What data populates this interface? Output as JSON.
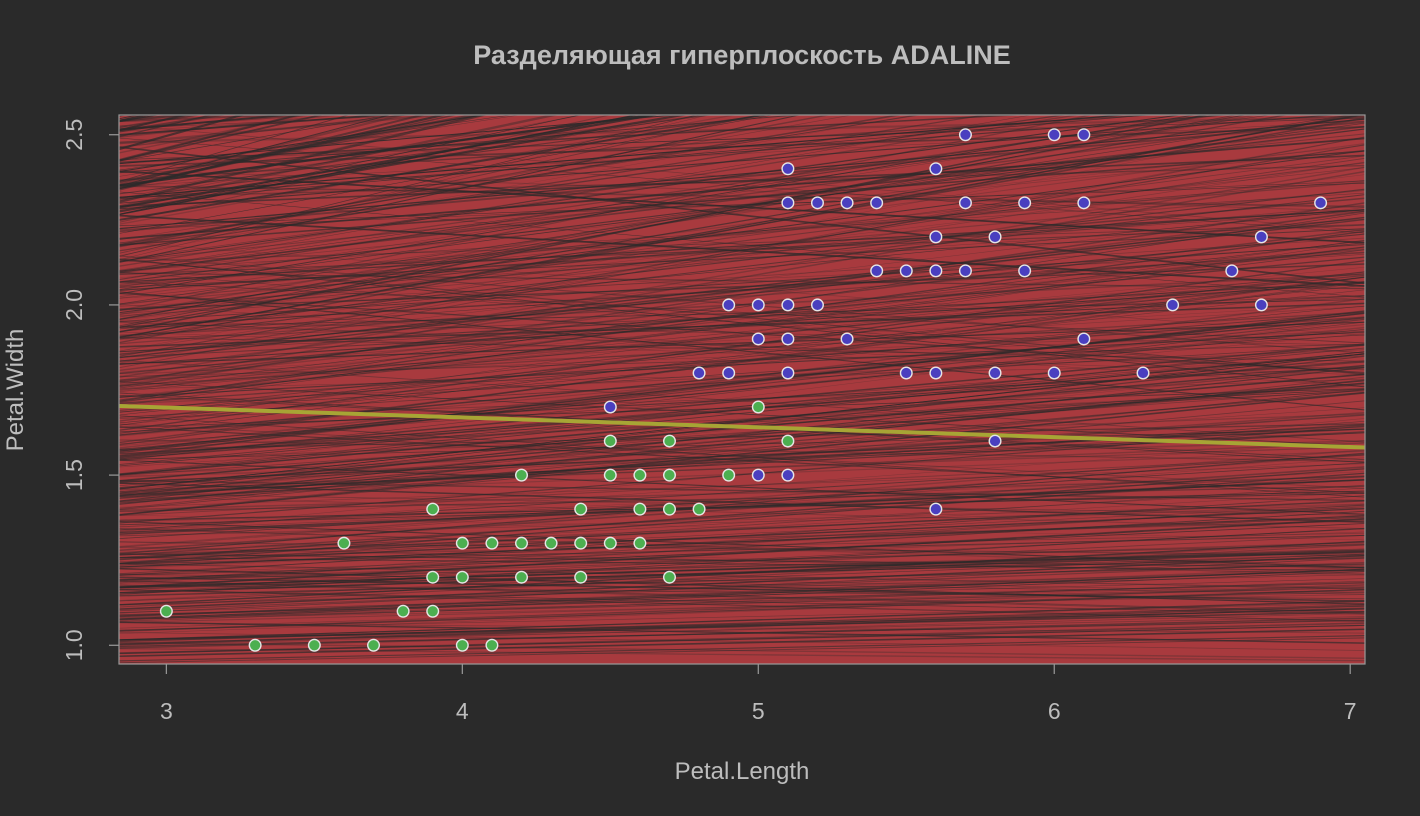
{
  "chart_data": {
    "type": "scatter",
    "title": "Разделяющая гиперплоскость ADALINE",
    "xlabel": "Petal.Length",
    "ylabel": "Petal.Width",
    "xlim": [
      2.84,
      7.05
    ],
    "ylim": [
      0.945,
      2.558
    ],
    "x_ticks": [
      "3",
      "4",
      "5",
      "6",
      "7"
    ],
    "y_ticks": [
      "1.0",
      "1.5",
      "2.0",
      "2.5"
    ],
    "grid": false,
    "background_color": "#a83a3e",
    "hatch_color": "#2a2a2a",
    "line_color": "#a7a535",
    "series": [
      {
        "color": "#4caf50",
        "points": [
          [
            3.0,
            1.1
          ],
          [
            3.3,
            1.0
          ],
          [
            3.5,
            1.0
          ],
          [
            3.6,
            1.3
          ],
          [
            3.7,
            1.0
          ],
          [
            3.8,
            1.1
          ],
          [
            3.9,
            1.4
          ],
          [
            3.9,
            1.2
          ],
          [
            3.9,
            1.1
          ],
          [
            4.0,
            1.3
          ],
          [
            4.0,
            1.2
          ],
          [
            4.0,
            1.0
          ],
          [
            4.1,
            1.3
          ],
          [
            4.1,
            1.0
          ],
          [
            4.2,
            1.5
          ],
          [
            4.2,
            1.3
          ],
          [
            4.2,
            1.2
          ],
          [
            4.3,
            1.3
          ],
          [
            4.4,
            1.4
          ],
          [
            4.4,
            1.3
          ],
          [
            4.4,
            1.2
          ],
          [
            4.5,
            1.6
          ],
          [
            4.5,
            1.5
          ],
          [
            4.5,
            1.3
          ],
          [
            4.6,
            1.5
          ],
          [
            4.6,
            1.4
          ],
          [
            4.6,
            1.3
          ],
          [
            4.7,
            1.6
          ],
          [
            4.7,
            1.5
          ],
          [
            4.7,
            1.4
          ],
          [
            4.7,
            1.2
          ],
          [
            4.8,
            1.4
          ],
          [
            4.9,
            1.5
          ],
          [
            5.0,
            1.7
          ],
          [
            5.1,
            1.6
          ]
        ]
      },
      {
        "color": "#4a3fbf",
        "points": [
          [
            4.5,
            1.7
          ],
          [
            4.8,
            1.8
          ],
          [
            4.9,
            2.0
          ],
          [
            4.9,
            1.8
          ],
          [
            5.0,
            2.0
          ],
          [
            5.0,
            1.9
          ],
          [
            5.0,
            1.5
          ],
          [
            5.1,
            2.4
          ],
          [
            5.1,
            2.3
          ],
          [
            5.1,
            2.0
          ],
          [
            5.1,
            1.9
          ],
          [
            5.1,
            1.8
          ],
          [
            5.1,
            1.5
          ],
          [
            5.2,
            2.3
          ],
          [
            5.2,
            2.0
          ],
          [
            5.3,
            2.3
          ],
          [
            5.3,
            1.9
          ],
          [
            5.4,
            2.3
          ],
          [
            5.4,
            2.1
          ],
          [
            5.5,
            2.1
          ],
          [
            5.5,
            1.8
          ],
          [
            5.6,
            2.4
          ],
          [
            5.6,
            2.2
          ],
          [
            5.6,
            2.1
          ],
          [
            5.6,
            1.8
          ],
          [
            5.6,
            1.4
          ],
          [
            5.7,
            2.5
          ],
          [
            5.7,
            2.3
          ],
          [
            5.7,
            2.1
          ],
          [
            5.8,
            2.2
          ],
          [
            5.8,
            1.8
          ],
          [
            5.8,
            1.6
          ],
          [
            5.9,
            2.3
          ],
          [
            5.9,
            2.1
          ],
          [
            6.0,
            2.5
          ],
          [
            6.0,
            1.8
          ],
          [
            6.1,
            2.5
          ],
          [
            6.1,
            2.3
          ],
          [
            6.1,
            1.9
          ],
          [
            6.3,
            1.8
          ],
          [
            6.4,
            2.0
          ],
          [
            6.6,
            2.1
          ],
          [
            6.7,
            2.2
          ],
          [
            6.7,
            2.0
          ],
          [
            6.9,
            2.3
          ]
        ]
      }
    ],
    "separating_line": {
      "x": [
        2.84,
        7.05
      ],
      "y": [
        1.703,
        1.581
      ]
    }
  }
}
